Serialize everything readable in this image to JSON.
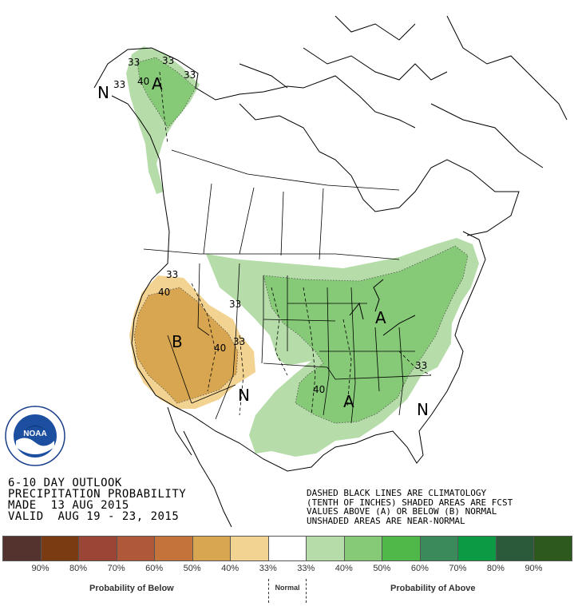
{
  "map": {
    "labels": {
      "alaska_33_a": "33",
      "alaska_33_b": "33",
      "alaska_33_c": "33",
      "alaska_40": "40",
      "alaska_A": "A",
      "alaska_N": "N",
      "west_33": "33",
      "west_40_a": "40",
      "west_40_b": "40",
      "west_B": "B",
      "rockies_33": "33",
      "south_N": "N",
      "east_A": "A",
      "south_40": "40",
      "south_A": "A",
      "southeast_33": "33",
      "southeast_N": "N"
    },
    "colors": {
      "below_40": "#d8a650",
      "below_33": "#f2d392",
      "above_33": "#b6dcaa",
      "above_40": "#86c977",
      "outline": "#000000"
    }
  },
  "title": {
    "line1": "6-10 DAY OUTLOOK",
    "line2": "PRECIPITATION PROBABILITY",
    "line3": "MADE  13 AUG 2015",
    "line4": "VALID  AUG 19 - 23, 2015"
  },
  "note": {
    "line1": "DASHED BLACK LINES ARE CLIMATOLOGY",
    "line2": "(TENTH OF INCHES) SHADED AREAS ARE FCST",
    "line3": "VALUES ABOVE (A) OR BELOW (B) NORMAL",
    "line4": "UNSHADED AREAS ARE NEAR-NORMAL"
  },
  "legend": {
    "swatches": [
      "#54322e",
      "#7a3b12",
      "#9a4536",
      "#b0583a",
      "#c4743a",
      "#d8a650",
      "#f2d392",
      "#ffffff",
      "#b6dcaa",
      "#86c977",
      "#4fb848",
      "#3a8a5c",
      "#0c9a44",
      "#2a5a3a",
      "#2d5a1c"
    ],
    "ticks": [
      "90%",
      "80%",
      "70%",
      "60%",
      "50%",
      "40%",
      "33%",
      "33%",
      "40%",
      "50%",
      "60%",
      "70%",
      "80%",
      "90%"
    ],
    "below_caption": "Probability of Below",
    "normal_caption": "Normal",
    "above_caption": "Probability of Above"
  },
  "logo": {
    "text": "NOAA",
    "ring_text": "U.S. DEPARTMENT OF COMMERCE"
  }
}
